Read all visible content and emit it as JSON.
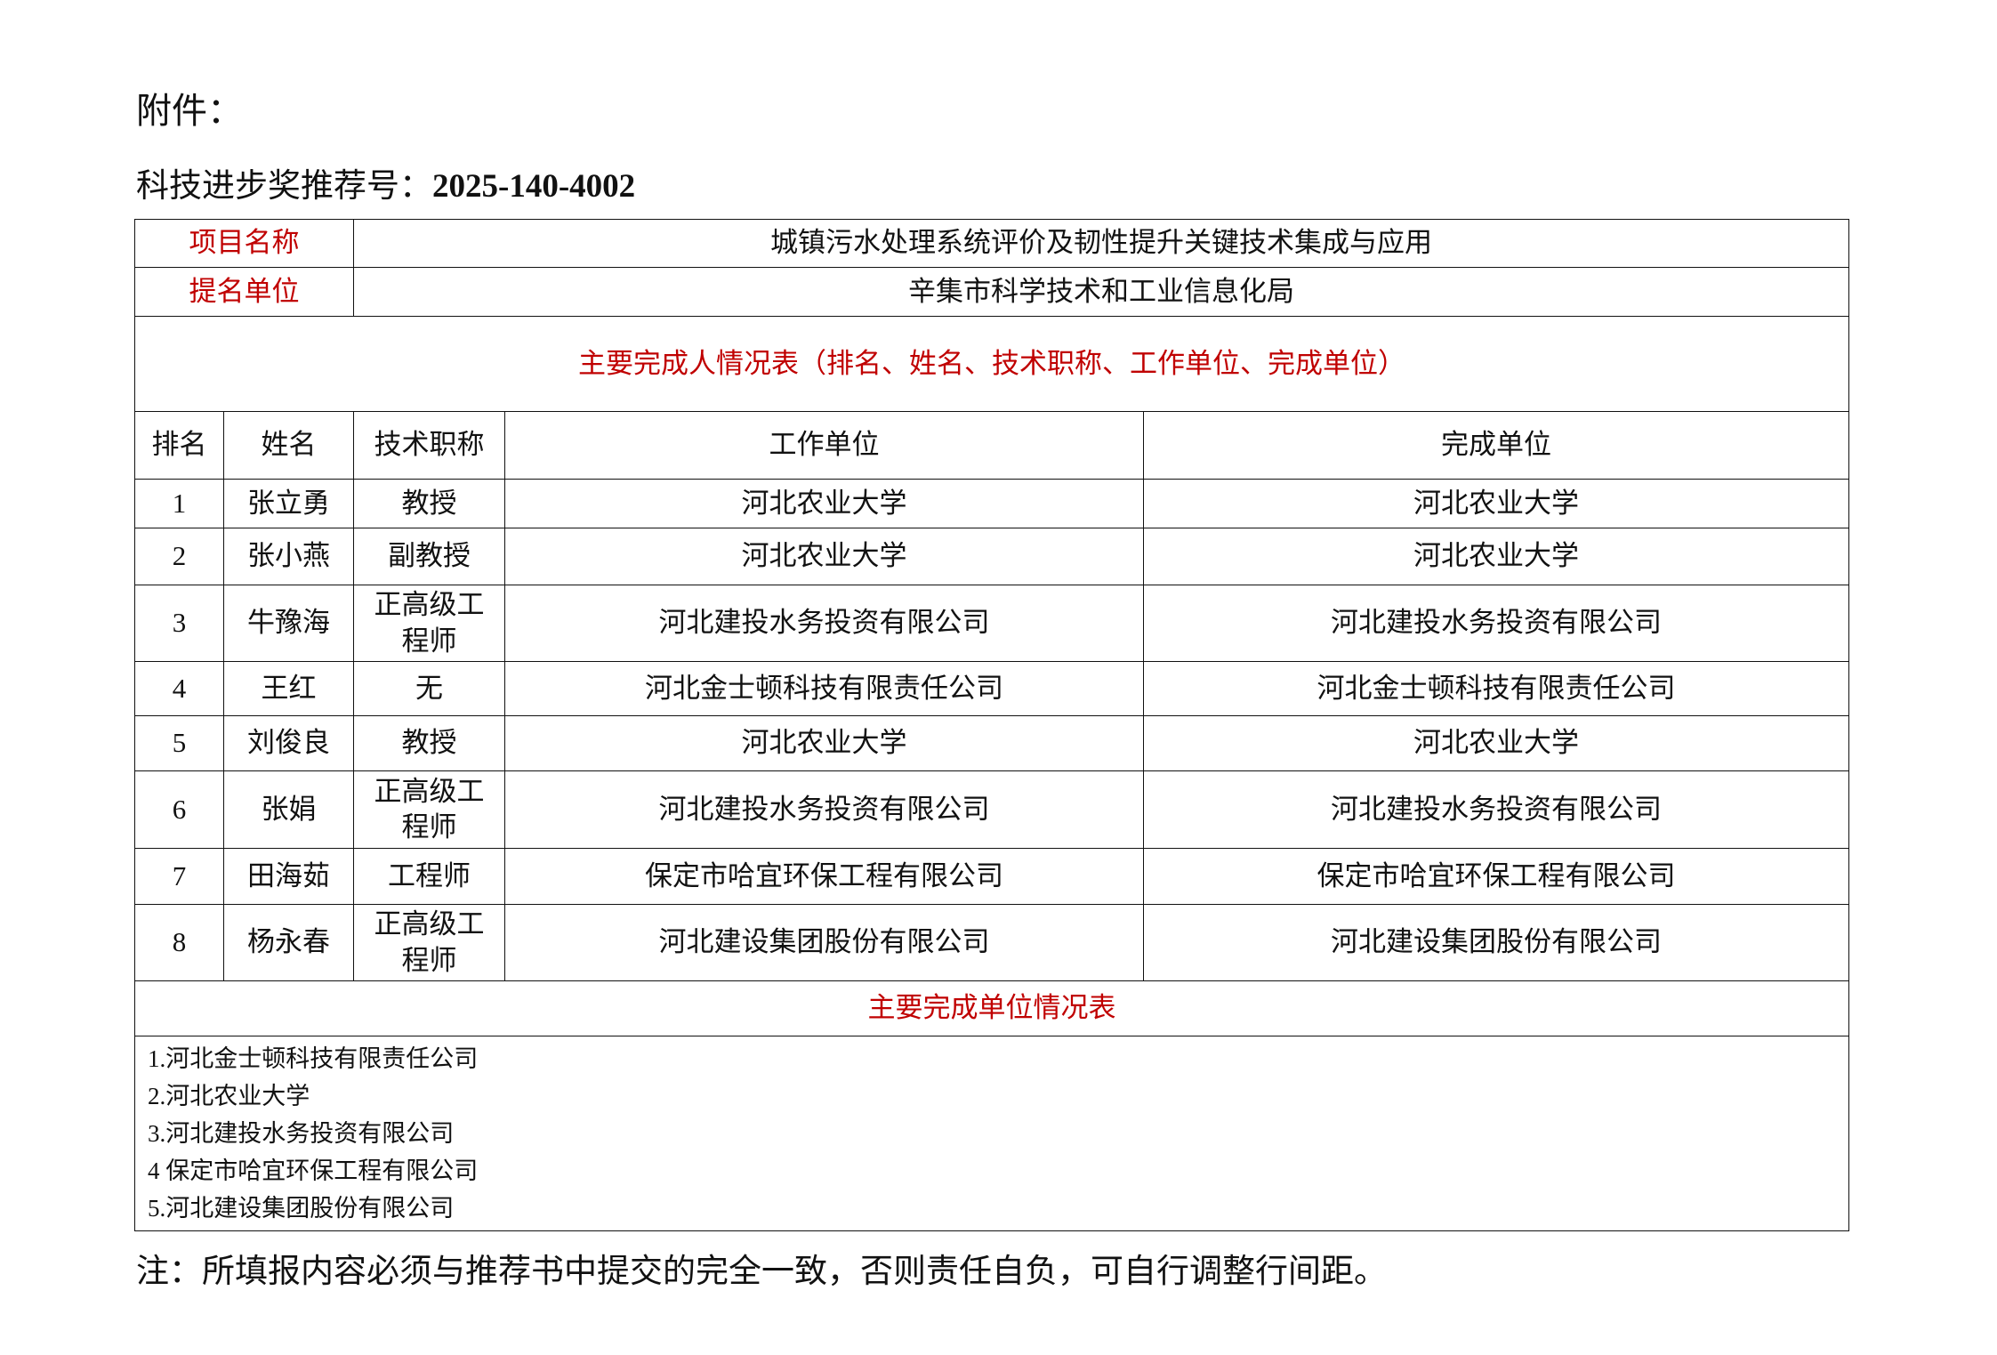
{
  "header": {
    "attachment_label": "附件：",
    "award_label": "科技进步奖推荐号：",
    "award_number": "2025-140-4002"
  },
  "project": {
    "name_label": "项目名称",
    "name_value": "城镇污水处理系统评价及韧性提升关键技术集成与应用",
    "nominator_label": "提名单位",
    "nominator_value": "辛集市科学技术和工业信息化局"
  },
  "people_table": {
    "title": "主要完成人情况表（排名、姓名、技术职称、工作单位、完成单位）",
    "columns": [
      "排名",
      "姓名",
      "技术职称",
      "工作单位",
      "完成单位"
    ],
    "rows": [
      {
        "rank": "1",
        "name": "张立勇",
        "title": "教授",
        "work_unit": "河北农业大学",
        "completion_unit": "河北农业大学"
      },
      {
        "rank": "2",
        "name": "张小燕",
        "title": "副教授",
        "work_unit": "河北农业大学",
        "completion_unit": "河北农业大学"
      },
      {
        "rank": "3",
        "name": "牛豫海",
        "title": "正高级工程师",
        "work_unit": "河北建投水务投资有限公司",
        "completion_unit": "河北建投水务投资有限公司"
      },
      {
        "rank": "4",
        "name": "王红",
        "title": "无",
        "work_unit": "河北金士顿科技有限责任公司",
        "completion_unit": "河北金士顿科技有限责任公司"
      },
      {
        "rank": "5",
        "name": "刘俊良",
        "title": "教授",
        "work_unit": "河北农业大学",
        "completion_unit": "河北农业大学"
      },
      {
        "rank": "6",
        "name": "张娟",
        "title": "正高级工程师",
        "work_unit": "河北建投水务投资有限公司",
        "completion_unit": "河北建投水务投资有限公司"
      },
      {
        "rank": "7",
        "name": "田海茹",
        "title": "工程师",
        "work_unit": "保定市哈宜环保工程有限公司",
        "completion_unit": "保定市哈宜环保工程有限公司"
      },
      {
        "rank": "8",
        "name": "杨永春",
        "title": "正高级工程师",
        "work_unit": "河北建设集团股份有限公司",
        "completion_unit": "河北建设集团股份有限公司"
      }
    ]
  },
  "units_table": {
    "title": "主要完成单位情况表",
    "items": [
      "1.河北金士顿科技有限责任公司",
      "2.河北农业大学",
      "3.河北建投水务投资有限公司",
      "4 保定市哈宜环保工程有限公司",
      "5.河北建设集团股份有限公司"
    ]
  },
  "note": "注：所填报内容必须与推荐书中提交的完全一致，否则责任自负，可自行调整行间距。",
  "colors": {
    "label_red": "#c00000",
    "text": "#111111"
  }
}
